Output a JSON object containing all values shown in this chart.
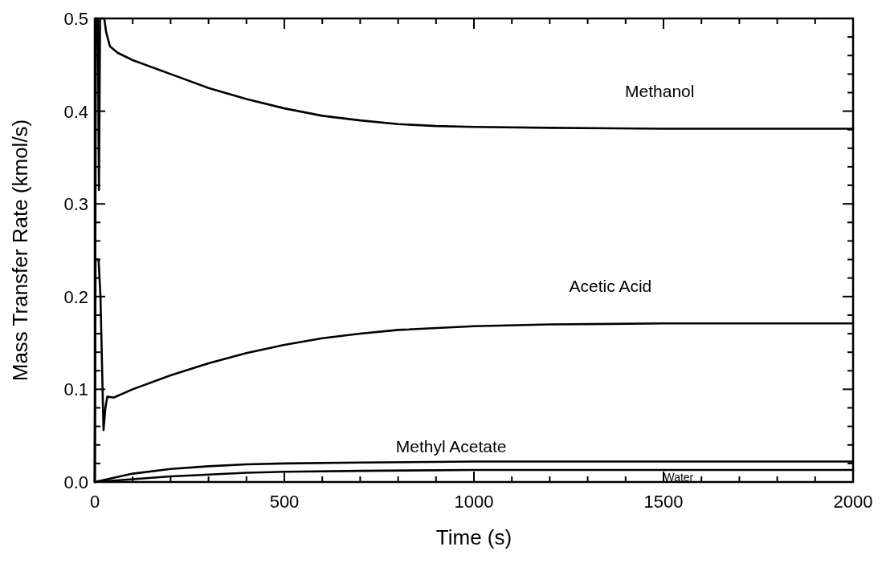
{
  "chart_data": {
    "type": "line",
    "xlabel": "Time (s)",
    "ylabel": "Mass Transfer Rate (kmol/s)",
    "xlim": [
      0,
      2000
    ],
    "ylim": [
      0,
      0.5
    ],
    "xticks": [
      0,
      {
        "value": 100,
        "label": null
      },
      {
        "value": 200,
        "label": null
      },
      {
        "value": 300,
        "label": null
      },
      {
        "value": 400,
        "label": null
      },
      500,
      {
        "value": 600,
        "label": null
      },
      {
        "value": 700,
        "label": null
      },
      {
        "value": 800,
        "label": null
      },
      {
        "value": 900,
        "label": null
      },
      1000,
      {
        "value": 1100,
        "label": null
      },
      {
        "value": 1200,
        "label": null
      },
      {
        "value": 1300,
        "label": null
      },
      {
        "value": 1400,
        "label": null
      },
      1500,
      {
        "value": 1600,
        "label": null
      },
      {
        "value": 1700,
        "label": null
      },
      {
        "value": 1800,
        "label": null
      },
      {
        "value": 1900,
        "label": null
      },
      2000
    ],
    "yticks": [
      {
        "value": 0,
        "label": "0.0"
      },
      {
        "value": 0.02,
        "label": null
      },
      {
        "value": 0.04,
        "label": null
      },
      {
        "value": 0.06,
        "label": null
      },
      {
        "value": 0.08,
        "label": null
      },
      0.1,
      {
        "value": 0.12,
        "label": null
      },
      {
        "value": 0.14,
        "label": null
      },
      {
        "value": 0.16,
        "label": null
      },
      {
        "value": 0.18,
        "label": null
      },
      0.2,
      {
        "value": 0.22,
        "label": null
      },
      {
        "value": 0.24,
        "label": null
      },
      {
        "value": 0.26,
        "label": null
      },
      {
        "value": 0.28,
        "label": null
      },
      0.3,
      {
        "value": 0.32,
        "label": null
      },
      {
        "value": 0.34,
        "label": null
      },
      {
        "value": 0.36,
        "label": null
      },
      {
        "value": 0.38,
        "label": null
      },
      0.4,
      {
        "value": 0.42,
        "label": null
      },
      {
        "value": 0.44,
        "label": null
      },
      {
        "value": 0.46,
        "label": null
      },
      {
        "value": 0.48,
        "label": null
      },
      0.5
    ],
    "grid": false,
    "marker": "none",
    "line_style": "solid",
    "series": [
      {
        "name": "Methanol",
        "color": "#000000",
        "x": [
          0,
          3,
          8,
          11,
          14,
          25,
          30,
          40,
          60,
          100,
          200,
          300,
          400,
          500,
          600,
          700,
          800,
          900,
          1000,
          1200,
          1500,
          2000
        ],
        "values": [
          0,
          0.5,
          0.5,
          0.315,
          0.5,
          0.5,
          0.485,
          0.47,
          0.463,
          0.455,
          0.44,
          0.425,
          0.413,
          0.403,
          0.395,
          0.39,
          0.386,
          0.384,
          0.383,
          0.382,
          0.381,
          0.381
        ]
      },
      {
        "name": "Acetic Acid",
        "color": "#000000",
        "x": [
          0,
          2,
          10,
          15,
          23,
          28,
          33,
          50,
          100,
          200,
          300,
          400,
          500,
          600,
          700,
          800,
          1000,
          1200,
          1500,
          2000
        ],
        "values": [
          0,
          0.24,
          0.24,
          0.2,
          0.056,
          0.08,
          0.092,
          0.091,
          0.1,
          0.115,
          0.128,
          0.139,
          0.148,
          0.155,
          0.16,
          0.164,
          0.168,
          0.17,
          0.171,
          0.171
        ]
      },
      {
        "name": "Methyl Acetate",
        "color": "#000000",
        "x": [
          0,
          100,
          200,
          300,
          400,
          500,
          700,
          1000,
          2000
        ],
        "values": [
          0,
          0.009,
          0.014,
          0.017,
          0.019,
          0.02,
          0.021,
          0.022,
          0.022
        ]
      },
      {
        "name": "Water",
        "color": "#000000",
        "x": [
          0,
          100,
          200,
          300,
          400,
          500,
          700,
          1000,
          2000
        ],
        "values": [
          0,
          0.003,
          0.006,
          0.008,
          0.01,
          0.011,
          0.012,
          0.013,
          0.013
        ]
      }
    ]
  }
}
